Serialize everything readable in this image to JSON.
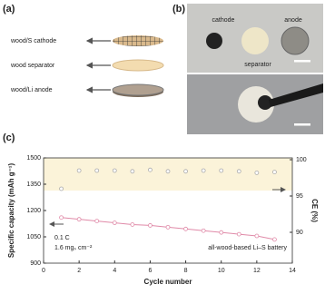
{
  "panel_a": {
    "label": "(a)",
    "items": [
      "wood/S cathode",
      "wood separator",
      "wood/Li anode"
    ]
  },
  "panel_b": {
    "label": "(b)",
    "cathode": "cathode",
    "anode": "anode",
    "separator": "separator"
  },
  "panel_c": {
    "label": "(c)"
  },
  "chart_data": {
    "type": "line",
    "xlabel": "Cycle number",
    "ylabel": "Specific capacity (mAh g⁻¹)",
    "y2label": "CE (%)",
    "annotations": [
      "0.1 C",
      "1.6 mgₛ cm⁻²",
      "all-wood-based Li–S battery"
    ],
    "x": [
      1,
      2,
      3,
      4,
      5,
      6,
      7,
      8,
      9,
      10,
      11,
      12,
      13
    ],
    "series": [
      {
        "color": "#e08aa8",
        "values": [
          1160,
          1150,
          1140,
          1130,
          1120,
          1115,
          1105,
          1095,
          1085,
          1075,
          1065,
          1055,
          1035
        ]
      },
      {
        "color": "#aaaaaa",
        "axis": "y2",
        "values": [
          96,
          98.5,
          98.5,
          98.5,
          98.4,
          98.6,
          98.4,
          98.4,
          98.5,
          98.5,
          98.4,
          98.2,
          98.3
        ]
      }
    ],
    "xlim": [
      0,
      14
    ],
    "xticks": [
      0,
      2,
      4,
      6,
      8,
      10,
      12,
      14
    ],
    "ylim": [
      900,
      1500
    ],
    "yticks": [
      900,
      1050,
      1200,
      1350,
      1500
    ],
    "y2lim": [
      85.75,
      100.25
    ],
    "y2ticks": [
      90,
      95,
      100
    ]
  }
}
